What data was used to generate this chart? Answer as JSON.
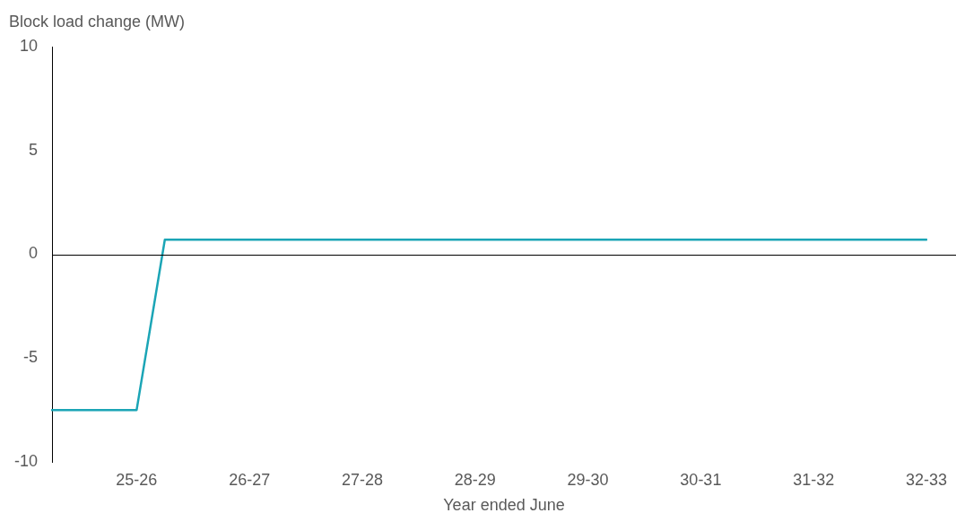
{
  "chart_data": {
    "type": "line",
    "ylabel": "Block load change (MW)",
    "xlabel": "Year ended June",
    "categories": [
      null,
      null,
      null,
      "25-26",
      null,
      null,
      null,
      "26-27",
      null,
      null,
      null,
      "27-28",
      null,
      null,
      null,
      "28-29",
      null,
      null,
      null,
      "29-30",
      null,
      null,
      null,
      "30-31",
      null,
      null,
      null,
      "31-32",
      null,
      null,
      null,
      "32-33"
    ],
    "series": [
      {
        "color": "#1ba5b6",
        "values": [
          -7.5,
          -7.5,
          -7.5,
          -7.5,
          0.7,
          0.7,
          0.7,
          0.7,
          0.7,
          0.7,
          0.7,
          0.7,
          0.7,
          0.7,
          0.7,
          0.7,
          0.7,
          0.7,
          0.7,
          0.7,
          0.7,
          0.7,
          0.7,
          0.7,
          0.7,
          0.7,
          0.7,
          0.7,
          0.7,
          0.7,
          0.7,
          0.7
        ]
      }
    ],
    "ylim": [
      -10,
      10
    ],
    "yticks": [
      -10,
      -5,
      0,
      5,
      10
    ],
    "ref_lines": [
      {
        "axis": "y",
        "value": 0,
        "color": "#000000"
      }
    ],
    "grid": false,
    "legend": false,
    "marker": "none",
    "line_style": "solid"
  }
}
